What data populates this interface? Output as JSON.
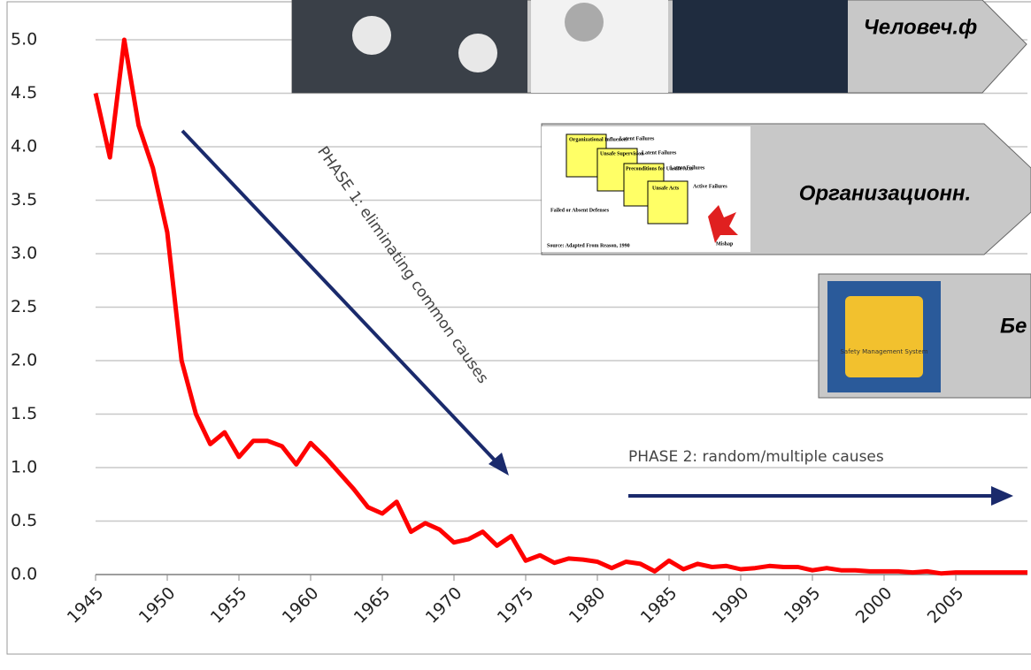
{
  "chart_data": {
    "type": "line",
    "x": [
      1945,
      1946,
      1947,
      1948,
      1949,
      1950,
      1951,
      1952,
      1953,
      1954,
      1955,
      1956,
      1957,
      1958,
      1959,
      1960,
      1961,
      1962,
      1963,
      1964,
      1965,
      1966,
      1967,
      1968,
      1969,
      1970,
      1971,
      1972,
      1973,
      1974,
      1975,
      1976,
      1977,
      1978,
      1979,
      1980,
      1981,
      1982,
      1983,
      1984,
      1985,
      1986,
      1987,
      1988,
      1989,
      1990,
      1991,
      1992,
      1993,
      1994,
      1995,
      1996,
      1997,
      1998,
      1999,
      2000,
      2001,
      2002,
      2003,
      2004,
      2005,
      2006,
      2007,
      2008,
      2009,
      2010
    ],
    "values": [
      4.5,
      3.9,
      5.0,
      4.2,
      3.8,
      3.2,
      2.0,
      1.5,
      1.22,
      1.33,
      1.1,
      1.25,
      1.25,
      1.2,
      1.03,
      1.23,
      1.1,
      0.95,
      0.8,
      0.63,
      0.57,
      0.68,
      0.4,
      0.48,
      0.42,
      0.3,
      0.33,
      0.4,
      0.27,
      0.36,
      0.13,
      0.18,
      0.11,
      0.15,
      0.14,
      0.12,
      0.06,
      0.12,
      0.1,
      0.03,
      0.13,
      0.05,
      0.1,
      0.07,
      0.08,
      0.05,
      0.06,
      0.08,
      0.07,
      0.07,
      0.04,
      0.06,
      0.04,
      0.04,
      0.03,
      0.03,
      0.03,
      0.02,
      0.03,
      0.01,
      0.02,
      0.02,
      0.02,
      0.02,
      0.02,
      0.02
    ],
    "color": "#ff0000",
    "xlim": [
      1945,
      2010
    ],
    "ylim": [
      0,
      5
    ],
    "xticks": [
      1945,
      1950,
      1955,
      1960,
      1965,
      1970,
      1975,
      1980,
      1985,
      1990,
      1995,
      2000,
      2005
    ],
    "yticks": [
      {
        "value": 0,
        "label": "0.0"
      },
      {
        "value": 0.5,
        "label": "0.5"
      },
      {
        "value": 1,
        "label": "1.0"
      },
      {
        "value": 1.5,
        "label": "1.5"
      },
      {
        "value": 2,
        "label": "2.0"
      },
      {
        "value": 2.5,
        "label": "2.5"
      },
      {
        "value": 3,
        "label": "3.0"
      },
      {
        "value": 3.5,
        "label": "3.5"
      },
      {
        "value": 4,
        "label": "4.0"
      },
      {
        "value": 4.5,
        "label": "4.5"
      },
      {
        "value": 5,
        "label": "5.0"
      }
    ],
    "grid": true,
    "annotations": [
      "PHASE 1: eliminating common causes",
      "PHASE 2: random/multiple causes"
    ]
  },
  "overlays": {
    "banner1": "Человеч.ф",
    "banner2": "Организационн.",
    "banner3": "Бе",
    "diagram": [
      "Organizational Influences",
      "Latent Failures",
      "Unsafe Supervision",
      "Latent Failures",
      "Preconditions for Unsafe Acts",
      "Latent Failures",
      "Unsafe Acts",
      "Active Failures",
      "Failed or Absent Defenses",
      "Mishap",
      "Source: Adapted From Reason, 1990"
    ],
    "badge": "Safety Management System"
  }
}
